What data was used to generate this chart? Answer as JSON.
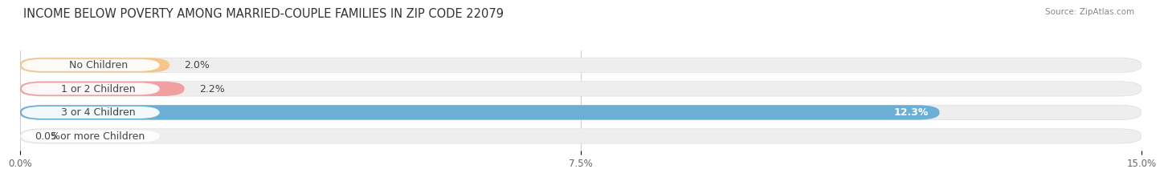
{
  "title": "INCOME BELOW POVERTY AMONG MARRIED-COUPLE FAMILIES IN ZIP CODE 22079",
  "source": "Source: ZipAtlas.com",
  "categories": [
    "No Children",
    "1 or 2 Children",
    "3 or 4 Children",
    "5 or more Children"
  ],
  "values": [
    2.0,
    2.2,
    12.3,
    0.0
  ],
  "bar_colors": [
    "#f5c589",
    "#f0a0a0",
    "#6baed6",
    "#c8b8d8"
  ],
  "label_text_colors": [
    "#555555",
    "#555555",
    "#555555",
    "#555555"
  ],
  "value_label_colors_inside": [
    false,
    false,
    true,
    false
  ],
  "xlim": [
    0,
    15.0
  ],
  "xticks": [
    0.0,
    7.5,
    15.0
  ],
  "xticklabels": [
    "0.0%",
    "7.5%",
    "15.0%"
  ],
  "bar_height": 0.62,
  "title_fontsize": 10.5,
  "label_fontsize": 9,
  "value_fontsize": 9
}
